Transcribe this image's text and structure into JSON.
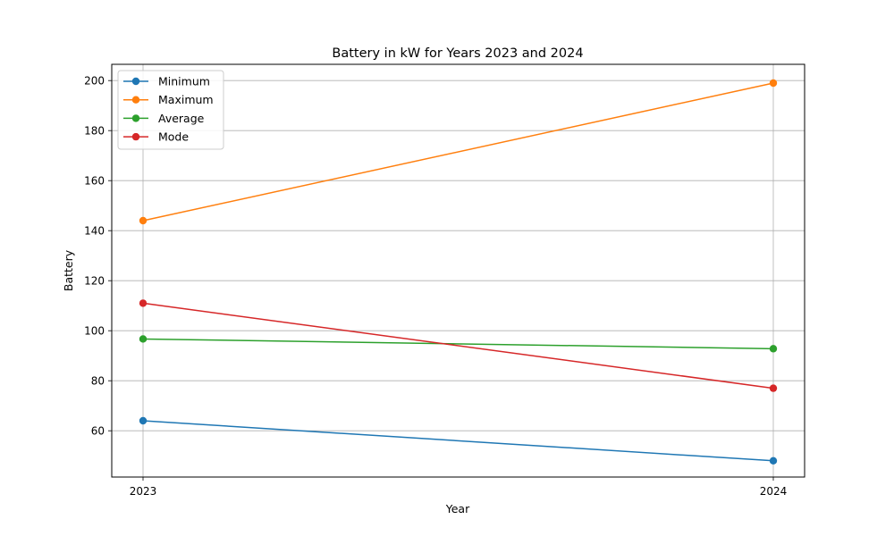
{
  "chart_data": {
    "type": "line",
    "title": "Battery in kW for Years 2023 and 2024",
    "xlabel": "Year",
    "ylabel": "Battery",
    "categories": [
      "2023",
      "2024"
    ],
    "ylim": [
      41.5,
      206.5
    ],
    "yticks": [
      60,
      80,
      100,
      120,
      140,
      160,
      180,
      200
    ],
    "grid": true,
    "legend_position": "top-left",
    "series": [
      {
        "name": "Minimum",
        "color": "#1f77b4",
        "values": [
          64,
          48
        ]
      },
      {
        "name": "Maximum",
        "color": "#ff7f0e",
        "values": [
          144,
          199
        ]
      },
      {
        "name": "Average",
        "color": "#2ca02c",
        "values": [
          96.7,
          92.8
        ]
      },
      {
        "name": "Mode",
        "color": "#d62728",
        "values": [
          111,
          77
        ]
      }
    ]
  }
}
